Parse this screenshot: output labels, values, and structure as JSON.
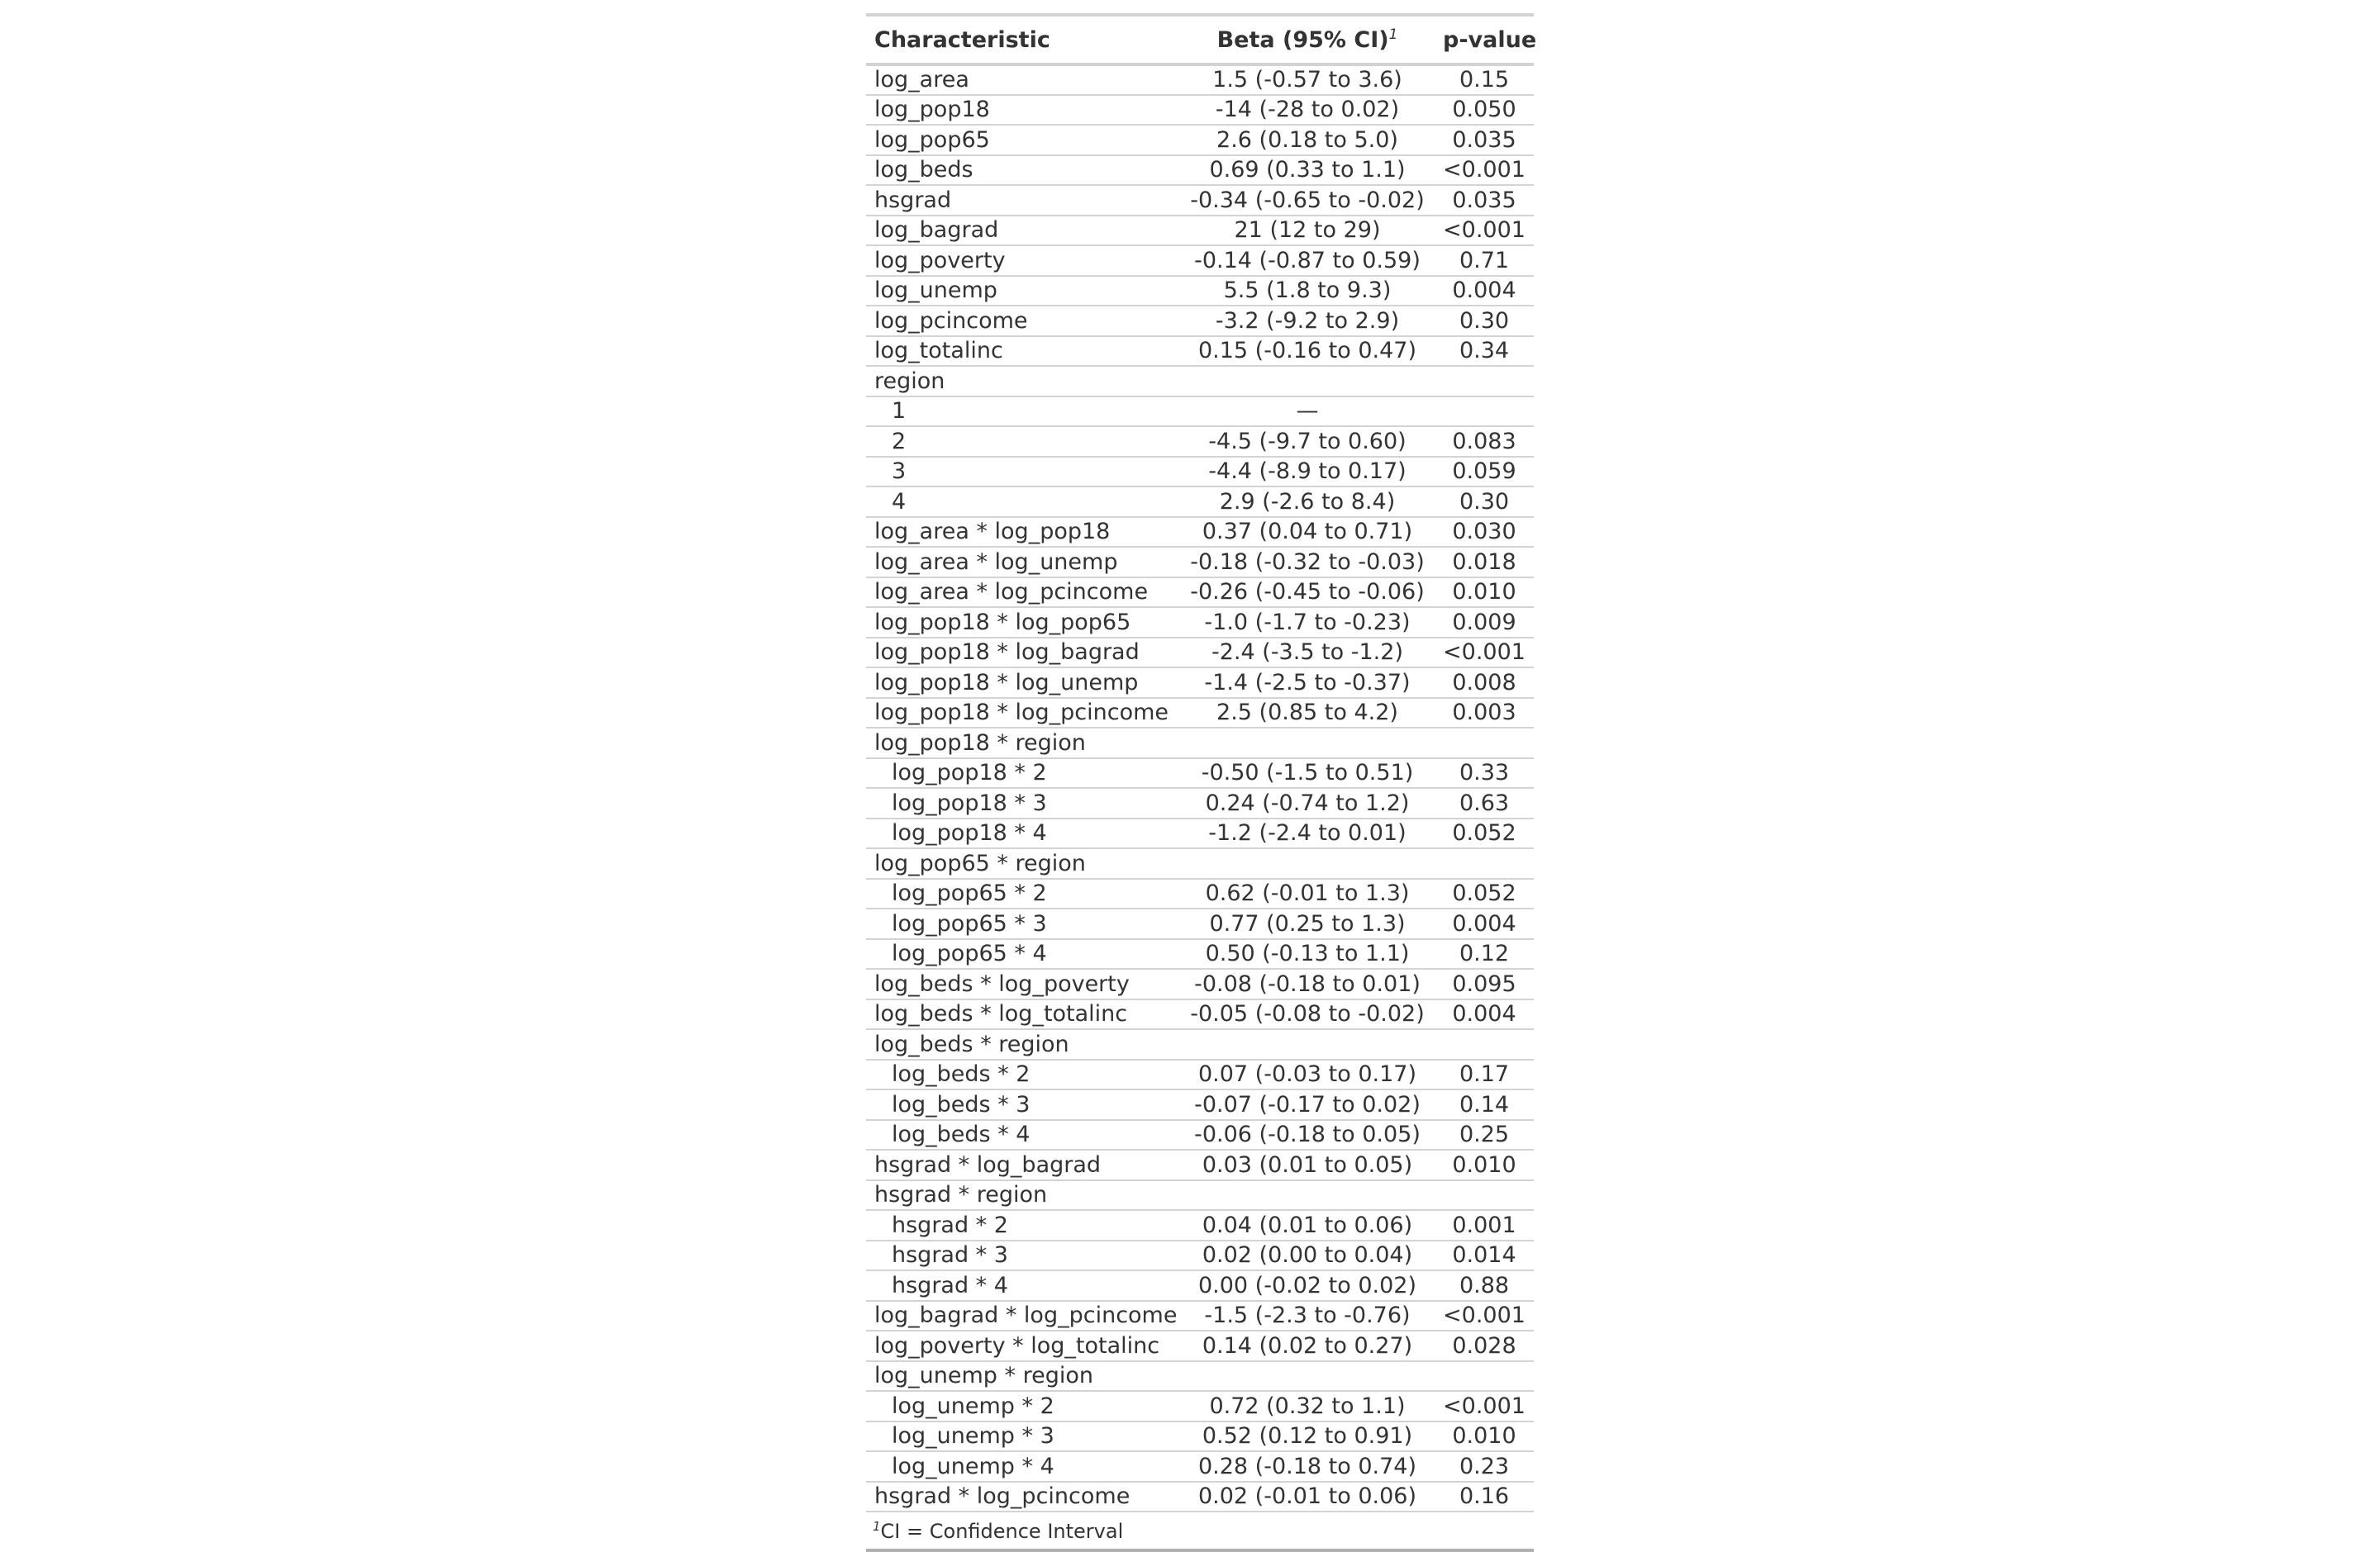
{
  "table": {
    "headers": {
      "characteristic": "Characteristic",
      "beta": "Beta (95% CI)",
      "beta_footnote_mark": "1",
      "pvalue": "p-value"
    },
    "rows": [
      {
        "label": "log_area",
        "beta": "1.5 (-0.57 to 3.6)",
        "p": "0.15",
        "indent": false
      },
      {
        "label": "log_pop18",
        "beta": "-14 (-28 to 0.02)",
        "p": "0.050",
        "indent": false
      },
      {
        "label": "log_pop65",
        "beta": "2.6 (0.18 to 5.0)",
        "p": "0.035",
        "indent": false
      },
      {
        "label": "log_beds",
        "beta": "0.69 (0.33 to 1.1)",
        "p": "<0.001",
        "indent": false
      },
      {
        "label": "hsgrad",
        "beta": "-0.34 (-0.65 to -0.02)",
        "p": "0.035",
        "indent": false
      },
      {
        "label": "log_bagrad",
        "beta": "21 (12 to 29)",
        "p": "<0.001",
        "indent": false
      },
      {
        "label": "log_poverty",
        "beta": "-0.14 (-0.87 to 0.59)",
        "p": "0.71",
        "indent": false
      },
      {
        "label": "log_unemp",
        "beta": "5.5 (1.8 to 9.3)",
        "p": "0.004",
        "indent": false
      },
      {
        "label": "log_pcincome",
        "beta": "-3.2 (-9.2 to 2.9)",
        "p": "0.30",
        "indent": false
      },
      {
        "label": "log_totalinc",
        "beta": "0.15 (-0.16 to 0.47)",
        "p": "0.34",
        "indent": false
      },
      {
        "label": "region",
        "beta": "",
        "p": "",
        "indent": false
      },
      {
        "label": "1",
        "beta": "—",
        "p": "",
        "indent": true
      },
      {
        "label": "2",
        "beta": "-4.5 (-9.7 to 0.60)",
        "p": "0.083",
        "indent": true
      },
      {
        "label": "3",
        "beta": "-4.4 (-8.9 to 0.17)",
        "p": "0.059",
        "indent": true
      },
      {
        "label": "4",
        "beta": "2.9 (-2.6 to 8.4)",
        "p": "0.30",
        "indent": true
      },
      {
        "label": "log_area * log_pop18",
        "beta": "0.37 (0.04 to 0.71)",
        "p": "0.030",
        "indent": false
      },
      {
        "label": "log_area * log_unemp",
        "beta": "-0.18 (-0.32 to -0.03)",
        "p": "0.018",
        "indent": false
      },
      {
        "label": "log_area * log_pcincome",
        "beta": "-0.26 (-0.45 to -0.06)",
        "p": "0.010",
        "indent": false
      },
      {
        "label": "log_pop18 * log_pop65",
        "beta": "-1.0 (-1.7 to -0.23)",
        "p": "0.009",
        "indent": false
      },
      {
        "label": "log_pop18 * log_bagrad",
        "beta": "-2.4 (-3.5 to -1.2)",
        "p": "<0.001",
        "indent": false
      },
      {
        "label": "log_pop18 * log_unemp",
        "beta": "-1.4 (-2.5 to -0.37)",
        "p": "0.008",
        "indent": false
      },
      {
        "label": "log_pop18 * log_pcincome",
        "beta": "2.5 (0.85 to 4.2)",
        "p": "0.003",
        "indent": false
      },
      {
        "label": "log_pop18 * region",
        "beta": "",
        "p": "",
        "indent": false
      },
      {
        "label": "log_pop18 * 2",
        "beta": "-0.50 (-1.5 to 0.51)",
        "p": "0.33",
        "indent": true
      },
      {
        "label": "log_pop18 * 3",
        "beta": "0.24 (-0.74 to 1.2)",
        "p": "0.63",
        "indent": true
      },
      {
        "label": "log_pop18 * 4",
        "beta": "-1.2 (-2.4 to 0.01)",
        "p": "0.052",
        "indent": true
      },
      {
        "label": "log_pop65 * region",
        "beta": "",
        "p": "",
        "indent": false
      },
      {
        "label": "log_pop65 * 2",
        "beta": "0.62 (-0.01 to 1.3)",
        "p": "0.052",
        "indent": true
      },
      {
        "label": "log_pop65 * 3",
        "beta": "0.77 (0.25 to 1.3)",
        "p": "0.004",
        "indent": true
      },
      {
        "label": "log_pop65 * 4",
        "beta": "0.50 (-0.13 to 1.1)",
        "p": "0.12",
        "indent": true
      },
      {
        "label": "log_beds * log_poverty",
        "beta": "-0.08 (-0.18 to 0.01)",
        "p": "0.095",
        "indent": false
      },
      {
        "label": "log_beds * log_totalinc",
        "beta": "-0.05 (-0.08 to -0.02)",
        "p": "0.004",
        "indent": false
      },
      {
        "label": "log_beds * region",
        "beta": "",
        "p": "",
        "indent": false
      },
      {
        "label": "log_beds * 2",
        "beta": "0.07 (-0.03 to 0.17)",
        "p": "0.17",
        "indent": true
      },
      {
        "label": "log_beds * 3",
        "beta": "-0.07 (-0.17 to 0.02)",
        "p": "0.14",
        "indent": true
      },
      {
        "label": "log_beds * 4",
        "beta": "-0.06 (-0.18 to 0.05)",
        "p": "0.25",
        "indent": true
      },
      {
        "label": "hsgrad * log_bagrad",
        "beta": "0.03 (0.01 to 0.05)",
        "p": "0.010",
        "indent": false
      },
      {
        "label": "hsgrad * region",
        "beta": "",
        "p": "",
        "indent": false
      },
      {
        "label": "hsgrad * 2",
        "beta": "0.04 (0.01 to 0.06)",
        "p": "0.001",
        "indent": true
      },
      {
        "label": "hsgrad * 3",
        "beta": "0.02 (0.00 to 0.04)",
        "p": "0.014",
        "indent": true
      },
      {
        "label": "hsgrad * 4",
        "beta": "0.00 (-0.02 to 0.02)",
        "p": "0.88",
        "indent": true
      },
      {
        "label": "log_bagrad * log_pcincome",
        "beta": "-1.5 (-2.3 to -0.76)",
        "p": "<0.001",
        "indent": false
      },
      {
        "label": "log_poverty * log_totalinc",
        "beta": "0.14 (0.02 to 0.27)",
        "p": "0.028",
        "indent": false
      },
      {
        "label": "log_unemp * region",
        "beta": "",
        "p": "",
        "indent": false
      },
      {
        "label": "log_unemp * 2",
        "beta": "0.72 (0.32 to 1.1)",
        "p": "<0.001",
        "indent": true
      },
      {
        "label": "log_unemp * 3",
        "beta": "0.52 (0.12 to 0.91)",
        "p": "0.010",
        "indent": true
      },
      {
        "label": "log_unemp * 4",
        "beta": "0.28 (-0.18 to 0.74)",
        "p": "0.23",
        "indent": true
      },
      {
        "label": "hsgrad * log_pcincome",
        "beta": "0.02 (-0.01 to 0.06)",
        "p": "0.16",
        "indent": false
      }
    ],
    "footnote": {
      "mark": "1",
      "text": "CI = Confidence Interval"
    }
  }
}
